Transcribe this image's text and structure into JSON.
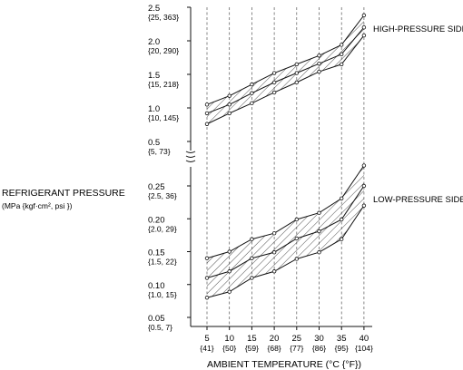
{
  "chart_data": {
    "type": "area",
    "ylabel": "REFRIGERANT PRESSURE",
    "ylabel_units": "(MPa {kgf·cm², psi })",
    "xlabel": "AMBIENT TEMPERATURE  (°C {°F})",
    "x": [
      5,
      10,
      15,
      20,
      25,
      30,
      35,
      40
    ],
    "x_tick_sub": [
      "{41}",
      "{50}",
      "{59}",
      "{68}",
      "{77}",
      "{86}",
      "{95}",
      "{104}"
    ],
    "grid": "dashed vertical lines at each temperature",
    "axis_break": "between 0.5 and 0.25 MPa",
    "upper_y_ticks": [
      {
        "value": 2.5,
        "label": "2.5",
        "sub": "{25, 363}"
      },
      {
        "value": 2.0,
        "label": "2.0",
        "sub": "{20, 290}"
      },
      {
        "value": 1.5,
        "label": "1.5",
        "sub": "{15, 218}"
      },
      {
        "value": 1.0,
        "label": "1.0",
        "sub": "{10, 145}"
      },
      {
        "value": 0.5,
        "label": "0.5",
        "sub": "{5, 73}"
      }
    ],
    "lower_y_ticks": [
      {
        "value": 0.25,
        "label": "0.25",
        "sub": "{2.5, 36}"
      },
      {
        "value": 0.2,
        "label": "0.20",
        "sub": "{2.0, 29}"
      },
      {
        "value": 0.15,
        "label": "0.15",
        "sub": "{1.5, 22}"
      },
      {
        "value": 0.1,
        "label": "0.10",
        "sub": "{1.0, 15}"
      },
      {
        "value": 0.05,
        "label": "0.05",
        "sub": "{0.5, 7}"
      }
    ],
    "series": [
      {
        "name": "HIGH-PRESSURE SIDE",
        "upper": [
          1.05,
          1.18,
          1.35,
          1.52,
          1.65,
          1.78,
          1.94,
          2.38
        ],
        "middle": [
          0.92,
          1.05,
          1.22,
          1.38,
          1.52,
          1.66,
          1.8,
          2.2
        ],
        "lower": [
          0.76,
          0.92,
          1.07,
          1.23,
          1.38,
          1.54,
          1.65,
          2.08
        ]
      },
      {
        "name": "LOW-PRESSURE SIDE",
        "upper": [
          0.14,
          0.15,
          0.169,
          0.178,
          0.199,
          0.209,
          0.231,
          0.281
        ],
        "middle": [
          0.11,
          0.12,
          0.14,
          0.149,
          0.17,
          0.181,
          0.199,
          0.25
        ],
        "lower": [
          0.08,
          0.089,
          0.11,
          0.12,
          0.139,
          0.149,
          0.169,
          0.22
        ]
      }
    ]
  }
}
